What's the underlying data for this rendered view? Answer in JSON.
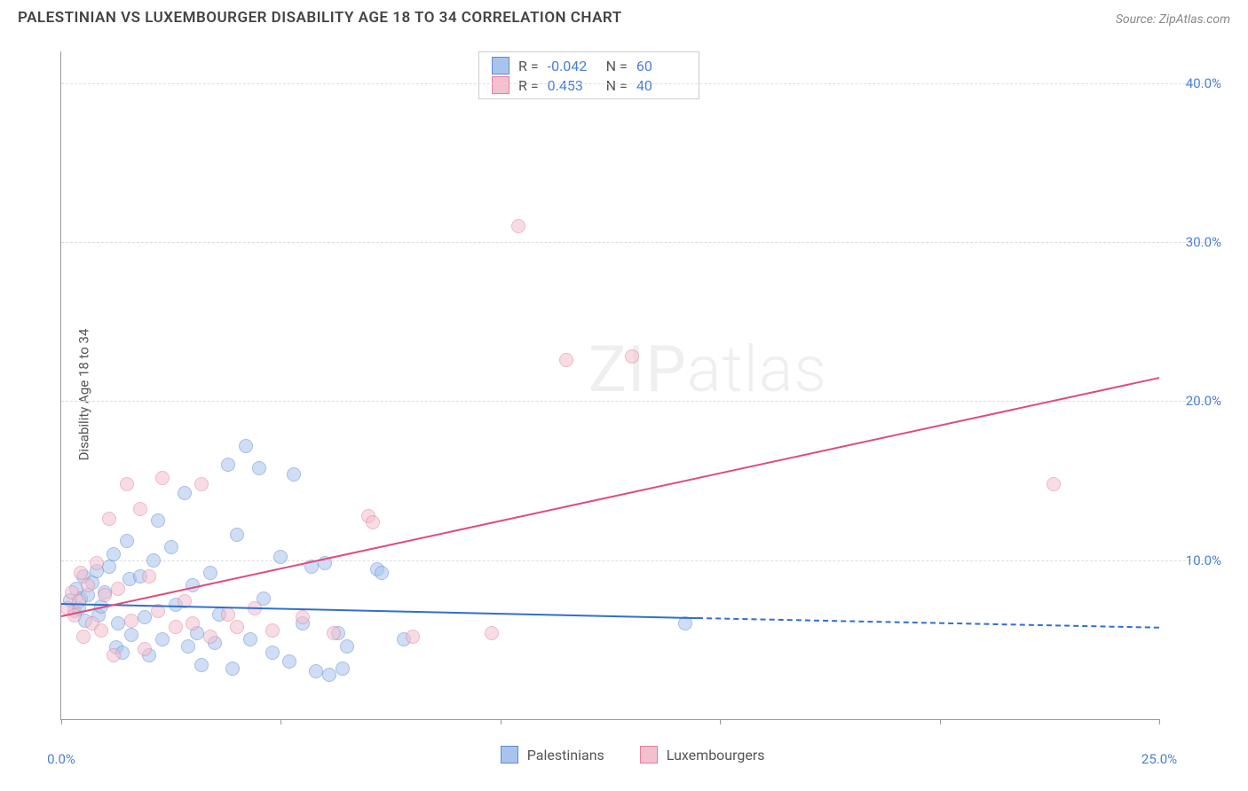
{
  "title": "PALESTINIAN VS LUXEMBOURGER DISABILITY AGE 18 TO 34 CORRELATION CHART",
  "source_label": "Source: ",
  "source_name": "ZipAtlas.com",
  "ylabel": "Disability Age 18 to 34",
  "watermark_a": "ZIP",
  "watermark_b": "atlas",
  "chart": {
    "type": "scatter",
    "background_color": "#ffffff",
    "grid_color": "#dddddd",
    "axis_color": "#999999",
    "tick_label_color": "#4a7fd8",
    "xlim": [
      0,
      25
    ],
    "ylim": [
      0,
      42
    ],
    "xticks": [
      0,
      5,
      10,
      15,
      20,
      25
    ],
    "xtick_labels": [
      "0.0%",
      "",
      "",
      "",
      "",
      "25.0%"
    ],
    "yticks": [
      10,
      20,
      30,
      40
    ],
    "ytick_labels": [
      "10.0%",
      "20.0%",
      "30.0%",
      "40.0%"
    ],
    "point_radius": 8,
    "point_opacity": 0.55,
    "series": [
      {
        "name": "Palestinians",
        "fill": "#a9c4ec",
        "stroke": "#5b8bd4",
        "reg_color": "#2f6fd0",
        "reg_start": [
          0,
          7.3
        ],
        "reg_end_solid": [
          14.5,
          6.4
        ],
        "reg_end_dash": [
          25,
          5.8
        ],
        "R": "-0.042",
        "N": "60",
        "points": [
          [
            0.2,
            7.5
          ],
          [
            0.3,
            6.8
          ],
          [
            0.35,
            8.2
          ],
          [
            0.4,
            7.0
          ],
          [
            0.45,
            7.6
          ],
          [
            0.5,
            9.0
          ],
          [
            0.55,
            6.2
          ],
          [
            0.6,
            7.8
          ],
          [
            0.7,
            8.6
          ],
          [
            0.8,
            9.3
          ],
          [
            0.85,
            6.5
          ],
          [
            0.9,
            7.1
          ],
          [
            1.0,
            8.0
          ],
          [
            1.1,
            9.6
          ],
          [
            1.2,
            10.4
          ],
          [
            1.25,
            4.5
          ],
          [
            1.3,
            6.0
          ],
          [
            1.4,
            4.2
          ],
          [
            1.5,
            11.2
          ],
          [
            1.55,
            8.8
          ],
          [
            1.6,
            5.3
          ],
          [
            1.8,
            9.0
          ],
          [
            1.9,
            6.4
          ],
          [
            2.0,
            4.0
          ],
          [
            2.1,
            10.0
          ],
          [
            2.2,
            12.5
          ],
          [
            2.3,
            5.0
          ],
          [
            2.5,
            10.8
          ],
          [
            2.6,
            7.2
          ],
          [
            2.8,
            14.2
          ],
          [
            2.9,
            4.6
          ],
          [
            3.0,
            8.4
          ],
          [
            3.1,
            5.4
          ],
          [
            3.2,
            3.4
          ],
          [
            3.4,
            9.2
          ],
          [
            3.5,
            4.8
          ],
          [
            3.6,
            6.6
          ],
          [
            3.8,
            16.0
          ],
          [
            3.9,
            3.2
          ],
          [
            4.0,
            11.6
          ],
          [
            4.2,
            17.2
          ],
          [
            4.3,
            5.0
          ],
          [
            4.5,
            15.8
          ],
          [
            4.6,
            7.6
          ],
          [
            4.8,
            4.2
          ],
          [
            5.0,
            10.2
          ],
          [
            5.2,
            3.6
          ],
          [
            5.3,
            15.4
          ],
          [
            5.5,
            6.0
          ],
          [
            5.7,
            9.6
          ],
          [
            5.8,
            3.0
          ],
          [
            6.0,
            9.8
          ],
          [
            6.1,
            2.8
          ],
          [
            6.3,
            5.4
          ],
          [
            6.4,
            3.2
          ],
          [
            6.5,
            4.6
          ],
          [
            7.2,
            9.4
          ],
          [
            7.3,
            9.2
          ],
          [
            7.8,
            5.0
          ],
          [
            14.2,
            6.0
          ]
        ]
      },
      {
        "name": "Luxembourgers",
        "fill": "#f4c0ce",
        "stroke": "#e37f9e",
        "reg_color": "#e14b7a",
        "reg_start": [
          0,
          6.5
        ],
        "reg_end_solid": [
          25,
          21.5
        ],
        "R": "0.453",
        "N": "40",
        "points": [
          [
            0.15,
            7.0
          ],
          [
            0.25,
            8.0
          ],
          [
            0.3,
            6.5
          ],
          [
            0.4,
            7.4
          ],
          [
            0.45,
            9.2
          ],
          [
            0.5,
            5.2
          ],
          [
            0.6,
            8.4
          ],
          [
            0.7,
            6.0
          ],
          [
            0.8,
            9.8
          ],
          [
            0.9,
            5.6
          ],
          [
            1.0,
            7.8
          ],
          [
            1.1,
            12.6
          ],
          [
            1.2,
            4.0
          ],
          [
            1.3,
            8.2
          ],
          [
            1.5,
            14.8
          ],
          [
            1.6,
            6.2
          ],
          [
            1.8,
            13.2
          ],
          [
            1.9,
            4.4
          ],
          [
            2.0,
            9.0
          ],
          [
            2.2,
            6.8
          ],
          [
            2.3,
            15.2
          ],
          [
            2.6,
            5.8
          ],
          [
            2.8,
            7.4
          ],
          [
            3.0,
            6.0
          ],
          [
            3.2,
            14.8
          ],
          [
            3.4,
            5.2
          ],
          [
            3.8,
            6.6
          ],
          [
            4.0,
            5.8
          ],
          [
            4.4,
            7.0
          ],
          [
            4.8,
            5.6
          ],
          [
            5.5,
            6.4
          ],
          [
            6.2,
            5.4
          ],
          [
            7.0,
            12.8
          ],
          [
            7.1,
            12.4
          ],
          [
            8.0,
            5.2
          ],
          [
            9.8,
            5.4
          ],
          [
            10.4,
            31.0
          ],
          [
            11.5,
            22.6
          ],
          [
            13.0,
            22.8
          ],
          [
            22.6,
            14.8
          ]
        ]
      }
    ]
  },
  "legend": {
    "r_label": "R =",
    "n_label": "N ="
  }
}
